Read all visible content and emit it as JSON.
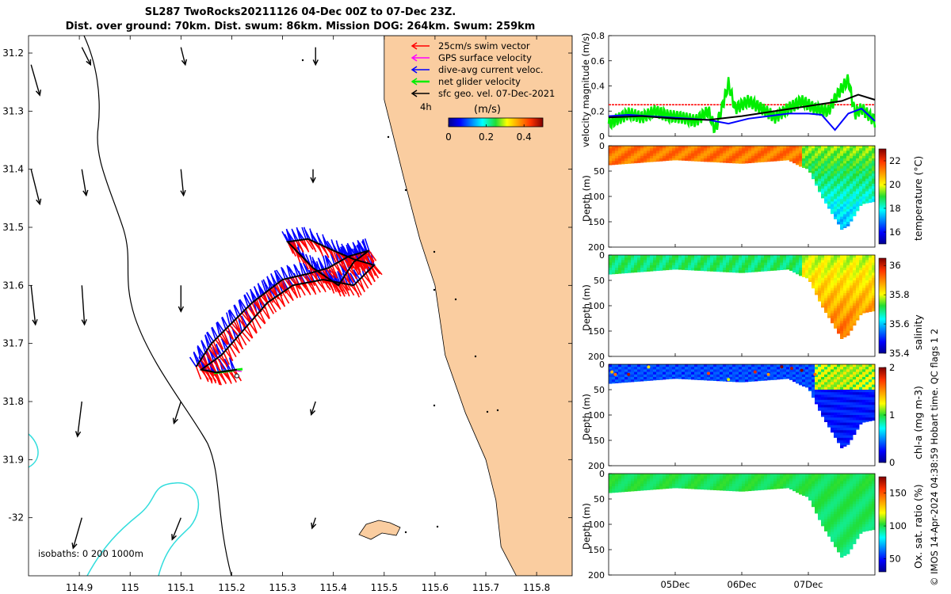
{
  "title_line1": "SL287 TwoRocks20211126 04-Dec 00Z to 07-Dec 23Z.",
  "title_line2": "Dist. over ground: 70km. Dist. swum: 86km. Mission DOG: 264km. Swum: 259km",
  "footer": "© IMOS 14-Apr-2024 04:38:59 Hobart time. QC flags 1  2",
  "colors": {
    "land": "#facda0",
    "swim_vector": "#ff0000",
    "gps_velocity": "#ff00ff",
    "dive_avg": "#0000ff",
    "net_glider": "#00ee00",
    "geo_vel": "#000000",
    "isobath": "#33dddd"
  },
  "chart_data": [
    {
      "type": "map",
      "title": "Glider track and velocity vectors",
      "xlim": [
        114.8,
        115.87
      ],
      "ylim": [
        -32.1,
        -31.17
      ],
      "xticks": [
        114.9,
        115,
        115.1,
        115.2,
        115.3,
        115.4,
        115.5,
        115.6,
        115.7,
        115.8
      ],
      "xtick_labels": [
        "114.9",
        "115",
        "115.1",
        "115.2",
        "115.3",
        "115.4",
        "115.5",
        "115.6",
        "115.7",
        "115.8"
      ],
      "yticks": [
        -31.2,
        -31.3,
        -31.4,
        -31.5,
        -31.6,
        -31.7,
        -31.8,
        -31.9,
        -32.0
      ],
      "ytick_labels": [
        "31.2",
        "31.3",
        "31.4",
        "31.5",
        "31.6",
        "31.7",
        "31.8",
        "31.9",
        "-32"
      ],
      "legend": [
        {
          "label": "25cm/s swim vector",
          "color_key": "swim_vector"
        },
        {
          "label": "GPS surface velocity",
          "color_key": "gps_velocity"
        },
        {
          "label": "dive-avg current veloc.",
          "color_key": "dive_avg"
        },
        {
          "label": "net glider velocity",
          "color_key": "net_glider"
        },
        {
          "label": "sfc geo. vel. 07-Dec-2021",
          "color_key": "geo_vel"
        }
      ],
      "time_step_label": "4h",
      "colorbar": {
        "label": "(m/s)",
        "min": 0,
        "max": 0.5,
        "ticks": [
          0,
          0.2,
          0.4
        ],
        "tick_labels": [
          "0",
          "0.2",
          "0.4"
        ]
      },
      "isobath_label": "isobaths: 0   200  1000m",
      "coastline": [
        [
          115.5,
          -31.17
        ],
        [
          115.5,
          -31.28
        ],
        [
          115.54,
          -31.42
        ],
        [
          115.57,
          -31.52
        ],
        [
          115.6,
          -31.6
        ],
        [
          115.62,
          -31.72
        ],
        [
          115.66,
          -31.82
        ],
        [
          115.7,
          -31.9
        ],
        [
          115.72,
          -31.97
        ],
        [
          115.73,
          -32.05
        ],
        [
          115.76,
          -32.1
        ]
      ],
      "track": [
        [
          115.13,
          -31.74
        ],
        [
          115.16,
          -31.7
        ],
        [
          115.2,
          -31.665
        ],
        [
          115.24,
          -31.63
        ],
        [
          115.27,
          -31.61
        ],
        [
          115.3,
          -31.59
        ],
        [
          115.35,
          -31.58
        ],
        [
          115.39,
          -31.57
        ],
        [
          115.43,
          -31.55
        ],
        [
          115.47,
          -31.54
        ],
        [
          115.44,
          -31.56
        ],
        [
          115.41,
          -31.6
        ],
        [
          115.36,
          -31.57
        ],
        [
          115.31,
          -31.525
        ],
        [
          115.35,
          -31.52
        ],
        [
          115.4,
          -31.54
        ],
        [
          115.44,
          -31.555
        ],
        [
          115.48,
          -31.565
        ],
        [
          115.44,
          -31.6
        ],
        [
          115.38,
          -31.59
        ],
        [
          115.32,
          -31.6
        ],
        [
          115.27,
          -31.63
        ],
        [
          115.22,
          -31.68
        ],
        [
          115.18,
          -31.72
        ],
        [
          115.14,
          -31.745
        ],
        [
          115.17,
          -31.75
        ],
        [
          115.21,
          -31.745
        ]
      ],
      "geo_vectors": [
        {
          "lon": 114.805,
          "lat": -31.22,
          "u": 0.01,
          "v": -0.035
        },
        {
          "lon": 114.905,
          "lat": -31.19,
          "u": 0.01,
          "v": -0.02
        },
        {
          "lon": 115.1,
          "lat": -31.19,
          "u": 0.005,
          "v": -0.02
        },
        {
          "lon": 115.365,
          "lat": -31.19,
          "u": 0.0,
          "v": -0.02
        },
        {
          "lon": 114.805,
          "lat": -31.4,
          "u": 0.01,
          "v": -0.04
        },
        {
          "lon": 114.905,
          "lat": -31.4,
          "u": 0.005,
          "v": -0.03
        },
        {
          "lon": 115.1,
          "lat": -31.4,
          "u": 0.003,
          "v": -0.03
        },
        {
          "lon": 115.36,
          "lat": -31.4,
          "u": 0.0,
          "v": -0.015
        },
        {
          "lon": 114.805,
          "lat": -31.6,
          "u": 0.005,
          "v": -0.045
        },
        {
          "lon": 114.905,
          "lat": -31.6,
          "u": 0.003,
          "v": -0.045
        },
        {
          "lon": 115.1,
          "lat": -31.6,
          "u": 0.0,
          "v": -0.03
        },
        {
          "lon": 114.905,
          "lat": -31.8,
          "u": -0.005,
          "v": -0.04
        },
        {
          "lon": 115.1,
          "lat": -31.8,
          "u": -0.008,
          "v": -0.025
        },
        {
          "lon": 115.365,
          "lat": -31.8,
          "u": -0.005,
          "v": -0.015
        },
        {
          "lon": 114.905,
          "lat": -32.0,
          "u": -0.01,
          "v": -0.035
        },
        {
          "lon": 115.1,
          "lat": -32.0,
          "u": -0.01,
          "v": -0.025
        },
        {
          "lon": 115.365,
          "lat": -32.0,
          "u": -0.004,
          "v": -0.012
        }
      ]
    },
    {
      "type": "line",
      "ylabel": "velocity magnitude (m/s)",
      "ylim": [
        0,
        0.8
      ],
      "yticks": [
        0,
        0.2,
        0.4,
        0.6,
        0.8
      ],
      "ytick_labels": [
        "0",
        "0.2",
        "0.4",
        "0.6",
        "0.8"
      ],
      "xlim": [
        0,
        4
      ],
      "xticks": [
        1,
        2,
        3
      ],
      "xtick_labels": [
        "05Dec",
        "06Dec",
        "07Dec"
      ],
      "series": [
        {
          "name": "25cm/s swim vector",
          "color_key": "swim_vector",
          "x": [
            0,
            4
          ],
          "y": [
            0.25,
            0.25
          ]
        },
        {
          "name": "net glider velocity",
          "color_key": "net_glider",
          "x": [
            0,
            0.3,
            0.5,
            0.7,
            0.9,
            1.1,
            1.3,
            1.5,
            1.6,
            1.7,
            1.8,
            1.9,
            2.1,
            2.3,
            2.5,
            2.7,
            2.9,
            3.1,
            3.3,
            3.4,
            3.5,
            3.6,
            3.7,
            3.8,
            4.0
          ],
          "y": [
            0.1,
            0.18,
            0.15,
            0.2,
            0.16,
            0.15,
            0.12,
            0.2,
            0.05,
            0.22,
            0.42,
            0.22,
            0.28,
            0.22,
            0.15,
            0.22,
            0.28,
            0.22,
            0.2,
            0.3,
            0.38,
            0.45,
            0.18,
            0.22,
            0.12
          ]
        },
        {
          "name": "dive-avg current veloc.",
          "color_key": "dive_avg",
          "x": [
            0,
            0.3,
            0.6,
            0.9,
            1.2,
            1.5,
            1.8,
            2.1,
            2.4,
            2.7,
            3.0,
            3.2,
            3.4,
            3.6,
            3.8,
            4.0
          ],
          "y": [
            0.16,
            0.17,
            0.16,
            0.15,
            0.14,
            0.13,
            0.1,
            0.14,
            0.16,
            0.18,
            0.18,
            0.17,
            0.05,
            0.18,
            0.22,
            0.12
          ]
        },
        {
          "name": "sfc geo. vel.",
          "color_key": "geo_vel",
          "x": [
            0,
            0.5,
            1.0,
            1.5,
            2.0,
            2.5,
            3.0,
            3.5,
            3.75,
            4.0
          ],
          "y": [
            0.15,
            0.16,
            0.14,
            0.13,
            0.16,
            0.2,
            0.24,
            0.28,
            0.33,
            0.29
          ]
        }
      ]
    },
    {
      "type": "heatmap",
      "ylabel": "Depth (m)",
      "cbar_label": "temperature (°C)",
      "ylim": [
        0,
        200
      ],
      "yticks": [
        0,
        50,
        100,
        150,
        200
      ],
      "ytick_labels": [
        "0",
        "50",
        "100",
        "150",
        "200"
      ],
      "clim": [
        15,
        23
      ],
      "cticks": [
        16,
        18,
        20,
        22
      ],
      "ctick_labels": [
        "16",
        "18",
        "20",
        "22"
      ],
      "profile_depth": {
        "x": [
          0,
          1.0,
          2.0,
          2.7,
          2.9,
          3.0,
          3.2,
          3.5,
          3.6,
          3.8,
          4.0
        ],
        "depth": [
          38,
          28,
          35,
          28,
          42,
          46,
          100,
          165,
          158,
          115,
          110
        ]
      },
      "water_value_surface": 21.5,
      "water_value_bottom": 18.0
    },
    {
      "type": "heatmap",
      "ylabel": "Depth (m)",
      "cbar_label": "salinity",
      "ylim": [
        0,
        200
      ],
      "yticks": [
        0,
        50,
        100,
        150,
        200
      ],
      "ytick_labels": [
        "0",
        "50",
        "100",
        "150",
        "200"
      ],
      "clim": [
        35.4,
        36.05
      ],
      "cticks": [
        35.4,
        35.6,
        35.8,
        36
      ],
      "ctick_labels": [
        "35.4",
        "35.6",
        "35.8",
        "36"
      ],
      "profile_depth": {
        "x": [
          0,
          1.0,
          2.0,
          2.7,
          2.9,
          3.0,
          3.2,
          3.5,
          3.6,
          3.8,
          4.0
        ],
        "depth": [
          38,
          28,
          35,
          28,
          42,
          46,
          100,
          165,
          158,
          115,
          110
        ]
      },
      "water_value_surface": 35.7,
      "water_value_bottom": 35.85
    },
    {
      "type": "heatmap",
      "ylabel": "Depth (m)",
      "cbar_label": "chl-a (mg m-3)",
      "ylim": [
        0,
        200
      ],
      "yticks": [
        0,
        50,
        100,
        150,
        200
      ],
      "ytick_labels": [
        "0",
        "50",
        "100",
        "150",
        "200"
      ],
      "clim": [
        0,
        2
      ],
      "cticks": [
        0,
        1,
        2
      ],
      "ctick_labels": [
        "0",
        "1",
        "2"
      ],
      "profile_depth": {
        "x": [
          0,
          1.0,
          2.0,
          2.7,
          2.9,
          3.0,
          3.2,
          3.5,
          3.6,
          3.8,
          4.0
        ],
        "depth": [
          38,
          28,
          35,
          28,
          42,
          46,
          100,
          165,
          158,
          115,
          110
        ]
      },
      "water_value_surface": 0.3,
      "water_value_bottom": 0.35
    },
    {
      "type": "heatmap",
      "ylabel": "Depth (m)",
      "cbar_label": "Ox. sat. ratio (%)",
      "ylim": [
        0,
        200
      ],
      "yticks": [
        0,
        50,
        100,
        150,
        200
      ],
      "ytick_labels": [
        "0",
        "50",
        "100",
        "150",
        "200"
      ],
      "clim": [
        30,
        175
      ],
      "cticks": [
        50,
        100,
        150
      ],
      "ctick_labels": [
        "50",
        "100",
        "150"
      ],
      "profile_depth": {
        "x": [
          0,
          1.0,
          2.0,
          2.7,
          2.9,
          3.0,
          3.2,
          3.5,
          3.6,
          3.8,
          4.0
        ],
        "depth": [
          38,
          28,
          35,
          28,
          42,
          46,
          100,
          165,
          158,
          115,
          110
        ]
      },
      "water_value_surface": 100,
      "water_value_bottom": 98
    }
  ]
}
